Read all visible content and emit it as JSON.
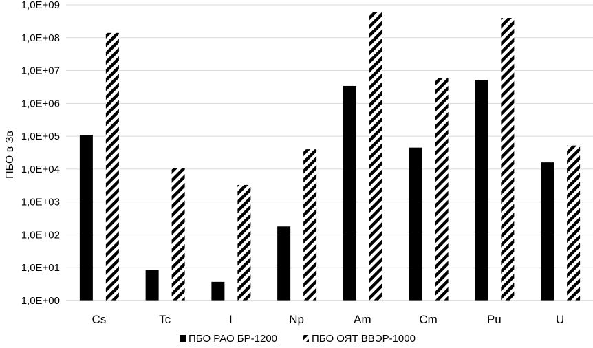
{
  "chart_data": {
    "type": "bar",
    "ylabel": "ПБО в Зв",
    "xlabel": "",
    "title": "",
    "yscale": "log",
    "ylim": [
      1,
      1000000000
    ],
    "yticks": [
      "1,0E+00",
      "1,0E+01",
      "1,0E+02",
      "1,0E+03",
      "1,0E+04",
      "1,0E+05",
      "1,0E+06",
      "1,0E+07",
      "1,0E+08",
      "1,0E+09"
    ],
    "categories": [
      "Cs",
      "Tc",
      "I",
      "Np",
      "Am",
      "Cm",
      "Pu",
      "U"
    ],
    "series": [
      {
        "name": "ПБО РАО БР-1200",
        "fill": "solid",
        "values": [
          110000,
          8.5,
          3.7,
          180,
          3400000,
          45000,
          5200000,
          16000
        ]
      },
      {
        "name": "ПБО ОЯТ ВВЭР-1000",
        "fill": "hatched",
        "values": [
          140000000,
          10500,
          3300,
          40000,
          600000000,
          5800000,
          400000000,
          52000
        ]
      }
    ],
    "grid": true,
    "legend_position": "bottom",
    "colors": {
      "bar": "#000000",
      "grid": "#d9d9d9",
      "axis": "#bfbfbf"
    }
  }
}
